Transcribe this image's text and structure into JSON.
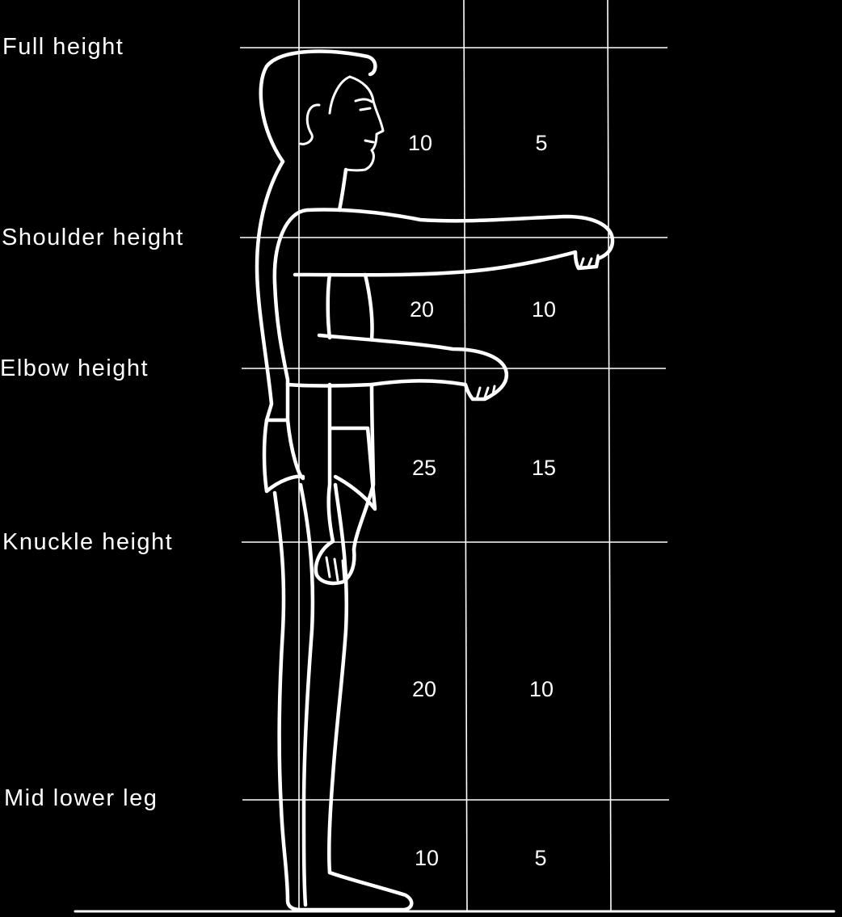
{
  "levels": [
    {
      "label": "Full height"
    },
    {
      "label": "Shoulder height"
    },
    {
      "label": "Elbow height"
    },
    {
      "label": "Knuckle height"
    },
    {
      "label": "Mid lower leg"
    }
  ],
  "segments": [
    {
      "col1": "10",
      "col2": "5"
    },
    {
      "col1": "20",
      "col2": "10"
    },
    {
      "col1": "25",
      "col2": "15"
    },
    {
      "col1": "20",
      "col2": "10"
    },
    {
      "col1": "10",
      "col2": "5"
    }
  ],
  "colors": {
    "background": "#000000",
    "foreground": "#ffffff"
  }
}
